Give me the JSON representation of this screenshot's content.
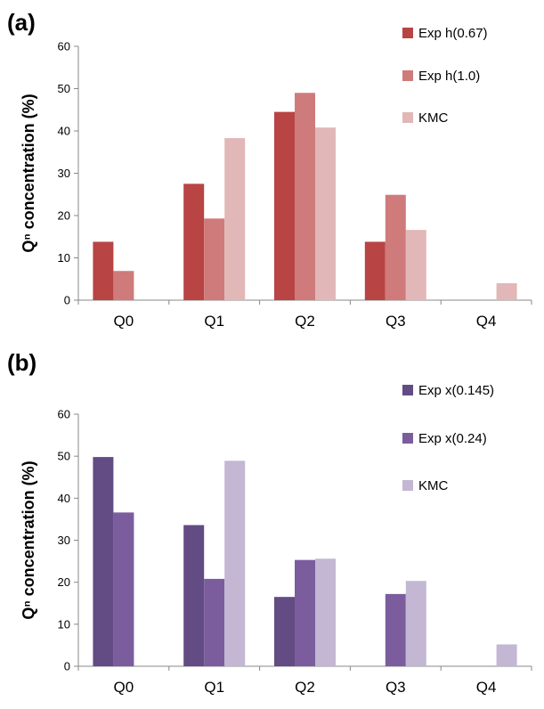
{
  "chart_data": [
    {
      "type": "bar",
      "panel_label": "(a)",
      "ylabel": "Qⁿ concentration (%)",
      "categories": [
        "Q0",
        "Q1",
        "Q2",
        "Q3",
        "Q4"
      ],
      "ylim": [
        0,
        60
      ],
      "yticks": [
        0,
        10,
        20,
        30,
        40,
        50,
        60
      ],
      "grid": false,
      "legend_position": "right",
      "series": [
        {
          "name": "Exp h(0.67)",
          "color": "#b84444",
          "values": [
            13.8,
            27.5,
            44.5,
            13.8,
            0
          ]
        },
        {
          "name": "Exp h(1.0)",
          "color": "#cf7b7b",
          "values": [
            6.9,
            19.3,
            49.0,
            24.9,
            0
          ]
        },
        {
          "name": "KMC",
          "color": "#e2b7b7",
          "values": [
            0,
            38.3,
            40.8,
            16.6,
            4.0
          ]
        }
      ]
    },
    {
      "type": "bar",
      "panel_label": "(b)",
      "ylabel": "Qⁿ concentration (%)",
      "categories": [
        "Q0",
        "Q1",
        "Q2",
        "Q3",
        "Q4"
      ],
      "ylim": [
        0,
        60
      ],
      "yticks": [
        0,
        10,
        20,
        30,
        40,
        50,
        60
      ],
      "grid": false,
      "legend_position": "right",
      "series": [
        {
          "name": "Exp x(0.145)",
          "color": "#634b83",
          "values": [
            49.8,
            33.6,
            16.5,
            0,
            0
          ]
        },
        {
          "name": "Exp x(0.24)",
          "color": "#7b5d9d",
          "values": [
            36.6,
            20.8,
            25.3,
            17.2,
            0
          ]
        },
        {
          "name": "KMC",
          "color": "#c3b7d4",
          "values": [
            0,
            48.9,
            25.6,
            20.3,
            5.2
          ]
        }
      ]
    }
  ]
}
